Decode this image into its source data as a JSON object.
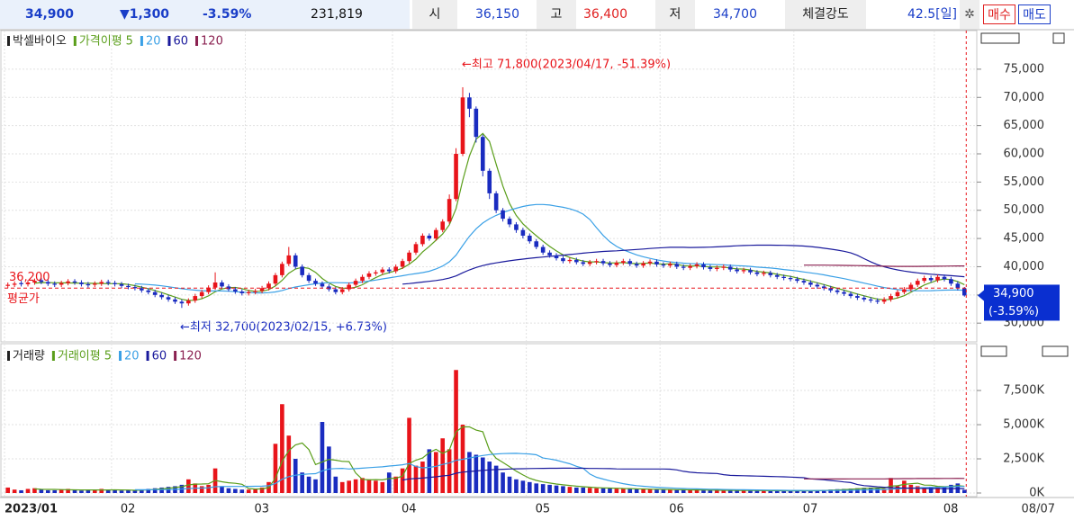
{
  "header": {
    "price": "34,900",
    "change": "▼1,300",
    "rate": "-3.59%",
    "volume": "231,819",
    "open_label": "시",
    "open": "36,150",
    "high_label": "고",
    "high": "36,400",
    "low_label": "저",
    "low": "34,700",
    "strength_label": "체결강도",
    "strength": "42.5[일]",
    "buy": "매수",
    "sell": "매도"
  },
  "cursor_date": "08/07",
  "chart_data": [
    {
      "type": "candlestick",
      "name": "박셀바이오",
      "up_color": "#e8141a",
      "down_color": "#1a2cc0",
      "categories": [
        "2023/01",
        null,
        null,
        null,
        null,
        null,
        null,
        null,
        null,
        null,
        null,
        null,
        null,
        null,
        null,
        null,
        "02",
        null,
        null,
        null,
        null,
        null,
        null,
        null,
        null,
        null,
        null,
        null,
        null,
        null,
        null,
        null,
        null,
        null,
        null,
        null,
        "03",
        null,
        null,
        null,
        null,
        null,
        null,
        null,
        null,
        null,
        null,
        null,
        null,
        null,
        null,
        null,
        null,
        null,
        null,
        null,
        null,
        null,
        "04",
        null,
        null,
        null,
        null,
        null,
        null,
        null,
        null,
        null,
        null,
        null,
        null,
        null,
        null,
        null,
        null,
        null,
        null,
        null,
        "05",
        null,
        null,
        null,
        null,
        null,
        null,
        null,
        null,
        null,
        null,
        null,
        null,
        null,
        null,
        null,
        null,
        null,
        null,
        null,
        "06",
        null,
        null,
        null,
        null,
        null,
        null,
        null,
        null,
        null,
        null,
        null,
        null,
        null,
        null,
        null,
        null,
        null,
        null,
        null,
        "07",
        null,
        null,
        null,
        null,
        null,
        null,
        null,
        null,
        null,
        null,
        null,
        null,
        null,
        null,
        null,
        null,
        null,
        null,
        null,
        null,
        "08",
        null,
        null,
        null,
        null
      ],
      "open": [
        36600,
        36800,
        37100,
        36900,
        37200,
        37600,
        37300,
        37000,
        36800,
        37100,
        37400,
        37200,
        36900,
        36800,
        37000,
        37300,
        37100,
        36900,
        36600,
        36400,
        36200,
        35800,
        35500,
        35000,
        34600,
        34200,
        33800,
        33500,
        34000,
        34800,
        35500,
        36300,
        37200,
        36500,
        36000,
        35600,
        35300,
        35500,
        35700,
        36200,
        37000,
        38500,
        40500,
        42000,
        40000,
        38500,
        37500,
        37000,
        36500,
        36000,
        35500,
        36000,
        36800,
        37500,
        38200,
        38800,
        39000,
        39500,
        39200,
        40000,
        41000,
        42500,
        44000,
        45500,
        45000,
        46500,
        48000,
        52000,
        60000,
        70000,
        68000,
        63000,
        57000,
        53000,
        50000,
        48500,
        47500,
        46500,
        45500,
        44500,
        43500,
        42500,
        42000,
        41500,
        41000,
        41200,
        40800,
        40500,
        40800,
        41000,
        40600,
        40300,
        40700,
        41000,
        40500,
        40200,
        40600,
        40900,
        40400,
        40200,
        40500,
        40000,
        39800,
        40100,
        40400,
        39900,
        39600,
        39800,
        40000,
        39500,
        39200,
        39400,
        39000,
        38700,
        38900,
        38500,
        38200,
        38000,
        37800,
        37500,
        37200,
        36800,
        36500,
        36200,
        35800,
        35500,
        35200,
        34800,
        34500,
        34200,
        34000,
        33800,
        34200,
        34800,
        35500,
        36000,
        36800,
        37500,
        38000,
        37600,
        38200,
        37800,
        37000,
        36150
      ],
      "high": [
        37200,
        37400,
        37500,
        37600,
        37900,
        38000,
        37700,
        37400,
        37500,
        37800,
        37800,
        37600,
        37300,
        37400,
        37700,
        37700,
        37500,
        37300,
        37000,
        36800,
        36600,
        36200,
        35900,
        35400,
        35000,
        34600,
        34200,
        34400,
        35200,
        35900,
        36700,
        39000,
        37600,
        36900,
        36400,
        36000,
        35900,
        36100,
        36600,
        37400,
        38900,
        40900,
        43500,
        42400,
        40400,
        38900,
        37900,
        37400,
        36900,
        36400,
        36400,
        37200,
        37900,
        38600,
        39200,
        39400,
        39900,
        39900,
        40400,
        41400,
        42900,
        44400,
        45900,
        45900,
        46900,
        48400,
        52800,
        61000,
        71800,
        70800,
        68400,
        63400,
        57400,
        53400,
        50400,
        48900,
        47900,
        46900,
        45900,
        44900,
        43900,
        42900,
        42400,
        41900,
        41600,
        41600,
        41200,
        41200,
        41400,
        41400,
        41000,
        41100,
        41400,
        41400,
        40900,
        41000,
        41300,
        41300,
        40800,
        40900,
        40900,
        40400,
        40500,
        40800,
        40800,
        40300,
        40200,
        40400,
        40400,
        39900,
        39800,
        39800,
        39400,
        39300,
        39300,
        38900,
        38600,
        38400,
        38200,
        37900,
        37600,
        37200,
        36900,
        36600,
        36200,
        35900,
        35600,
        35200,
        34900,
        34600,
        34400,
        34600,
        35200,
        35900,
        36400,
        37200,
        37900,
        38400,
        38400,
        38600,
        38600,
        38200,
        37400,
        36400
      ],
      "low": [
        36200,
        36400,
        36500,
        36500,
        36800,
        36900,
        36600,
        36400,
        36400,
        36700,
        36800,
        36500,
        36300,
        36400,
        36600,
        36700,
        36500,
        36200,
        36000,
        35800,
        35400,
        35100,
        34600,
        34200,
        33800,
        33400,
        32700,
        33100,
        33600,
        34400,
        35100,
        35900,
        36100,
        35600,
        35200,
        34900,
        34900,
        35100,
        35300,
        35800,
        36600,
        38100,
        40100,
        39600,
        38100,
        37100,
        36600,
        36100,
        35600,
        35100,
        35100,
        35600,
        36400,
        37100,
        37800,
        38400,
        38600,
        38800,
        38800,
        39600,
        40600,
        42100,
        43600,
        44600,
        44600,
        46100,
        47600,
        51600,
        59600,
        66500,
        62000,
        56000,
        52000,
        49500,
        48000,
        47000,
        46000,
        45000,
        44100,
        43100,
        42100,
        41600,
        41100,
        40600,
        40600,
        40400,
        40100,
        40100,
        40400,
        40200,
        39900,
        39900,
        40300,
        40100,
        39800,
        39800,
        40200,
        40000,
        39800,
        39800,
        39600,
        39400,
        39400,
        39700,
        39500,
        39200,
        39200,
        39400,
        39100,
        38800,
        38800,
        38600,
        38300,
        38300,
        38100,
        37800,
        37600,
        37400,
        37100,
        36800,
        36400,
        36100,
        35800,
        35400,
        35100,
        34800,
        34400,
        34100,
        33800,
        33600,
        33400,
        33400,
        33800,
        34400,
        35100,
        35600,
        36400,
        37100,
        37200,
        37200,
        37400,
        36600,
        35800,
        34700
      ],
      "close": [
        36800,
        37000,
        36900,
        37200,
        37500,
        37300,
        37000,
        36800,
        37100,
        37400,
        37200,
        36900,
        36700,
        37000,
        37300,
        37100,
        36900,
        36600,
        36400,
        36200,
        35800,
        35500,
        35000,
        34600,
        34200,
        33800,
        33500,
        34000,
        34800,
        35500,
        36300,
        37200,
        36500,
        36000,
        35600,
        35300,
        35500,
        35700,
        36200,
        37000,
        38500,
        40500,
        42000,
        40000,
        38500,
        37500,
        37000,
        36500,
        36000,
        35500,
        36000,
        36800,
        37500,
        38200,
        38800,
        39000,
        39500,
        39200,
        40000,
        41000,
        42500,
        44000,
        45500,
        45000,
        46500,
        48000,
        52000,
        60000,
        70000,
        68000,
        63000,
        57000,
        53000,
        50000,
        48500,
        47500,
        46500,
        45500,
        44500,
        43500,
        42500,
        42000,
        41500,
        41000,
        41200,
        40800,
        40500,
        40800,
        41000,
        40600,
        40300,
        40700,
        41000,
        40500,
        40200,
        40600,
        40900,
        40400,
        40200,
        40500,
        40000,
        39800,
        40100,
        40400,
        39900,
        39600,
        39800,
        40000,
        39500,
        39200,
        39400,
        39000,
        38700,
        38900,
        38500,
        38200,
        38000,
        37800,
        37500,
        37200,
        36800,
        36500,
        36200,
        35800,
        35500,
        35200,
        34800,
        34500,
        34200,
        34000,
        33800,
        34200,
        34800,
        35500,
        36000,
        36800,
        37500,
        38000,
        37600,
        38200,
        37800,
        37000,
        36200,
        34900
      ],
      "moving_averages": [
        {
          "name": "가격이평",
          "period": 5,
          "color": "#5a9e1a"
        },
        {
          "period": 20,
          "color": "#3aa0e6"
        },
        {
          "period": 60,
          "color": "#1a1a9c"
        },
        {
          "period": 120,
          "color": "#8a2050"
        }
      ],
      "ylim": [
        27000,
        82000
      ],
      "yticks": [
        {
          "value": 30000,
          "label": "30,000"
        },
        {
          "value": 35000,
          "label": "35,000"
        },
        {
          "value": 40000,
          "label": "40,000"
        },
        {
          "value": 45000,
          "label": "45,000"
        },
        {
          "value": 50000,
          "label": "50,000"
        },
        {
          "value": 55000,
          "label": "55,000"
        },
        {
          "value": 60000,
          "label": "60,000"
        },
        {
          "value": 65000,
          "label": "65,000"
        },
        {
          "value": 70000,
          "label": "70,000"
        },
        {
          "value": 75000,
          "label": "75,000"
        }
      ],
      "grid": true,
      "annotations": [
        "←최고 71,800(2023/04/17, -51.39%)",
        "←최저 32,700(2023/02/15, +6.73%)"
      ],
      "average_price": {
        "name": "평균가",
        "value": 36200,
        "label": "36,200",
        "color": "#e8141a"
      },
      "last_price": {
        "value": 34900,
        "label": "34,900",
        "change": "(-3.59%)",
        "color": "#0a2fd0"
      }
    },
    {
      "type": "volume",
      "name": "거래량",
      "values": [
        400,
        250,
        200,
        300,
        350,
        250,
        200,
        200,
        250,
        300,
        200,
        180,
        200,
        250,
        300,
        200,
        200,
        180,
        200,
        220,
        250,
        300,
        350,
        400,
        450,
        500,
        600,
        1000,
        700,
        500,
        600,
        1800,
        500,
        350,
        300,
        250,
        250,
        300,
        400,
        800,
        3600,
        6500,
        4200,
        2500,
        1500,
        1200,
        1000,
        5200,
        3400,
        1200,
        800,
        900,
        1000,
        1100,
        1000,
        900,
        800,
        1500,
        1200,
        1800,
        5500,
        2000,
        2300,
        3200,
        3000,
        4000,
        3200,
        9000,
        5000,
        3000,
        2800,
        2600,
        2300,
        2000,
        1500,
        1200,
        1000,
        900,
        800,
        700,
        650,
        600,
        550,
        500,
        450,
        400,
        400,
        380,
        350,
        350,
        330,
        320,
        300,
        300,
        280,
        280,
        260,
        250,
        250,
        240,
        230,
        220,
        220,
        210,
        200,
        200,
        200,
        190,
        190,
        180,
        180,
        180,
        170,
        170,
        170,
        160,
        160,
        160,
        160,
        170,
        180,
        200,
        220,
        250,
        280,
        300,
        320,
        350,
        380,
        400,
        350,
        300,
        1100,
        500,
        900,
        600,
        500,
        400,
        450,
        500,
        450,
        600,
        700,
        232
      ],
      "moving_averages": [
        {
          "name": "거래이평",
          "period": 5,
          "color": "#5a9e1a"
        },
        {
          "period": 20,
          "color": "#3aa0e6"
        },
        {
          "period": 60,
          "color": "#1a1a9c"
        },
        {
          "period": 120,
          "color": "#8a2050"
        }
      ],
      "ylim": [
        0,
        10400
      ],
      "yticks": [
        {
          "value": 0,
          "label": "0K"
        },
        {
          "value": 2500,
          "label": "2,500K"
        },
        {
          "value": 5000,
          "label": "5,000K"
        },
        {
          "value": 7500,
          "label": "7,500K"
        }
      ],
      "grid": true
    }
  ]
}
